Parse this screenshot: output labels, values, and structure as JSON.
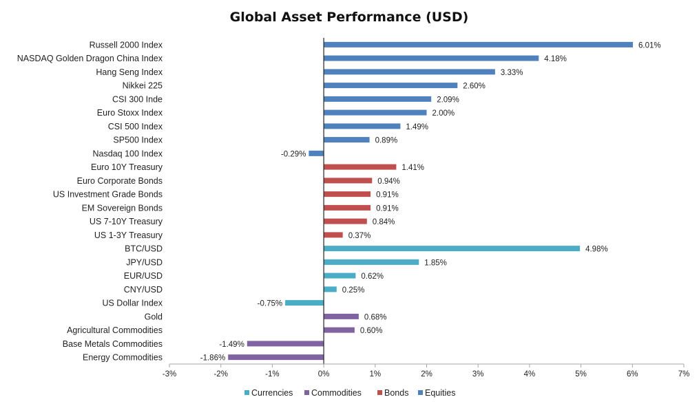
{
  "chart_data": {
    "type": "bar",
    "orientation": "horizontal",
    "title": "Global Asset Performance (USD)",
    "xlabel": "",
    "ylabel": "",
    "xlim": [
      -3,
      7
    ],
    "xticks": [
      -3,
      -2,
      -1,
      0,
      1,
      2,
      3,
      4,
      5,
      6,
      7
    ],
    "xtick_labels": [
      "-3%",
      "-2%",
      "-1%",
      "0%",
      "1%",
      "2%",
      "3%",
      "4%",
      "5%",
      "6%",
      "7%"
    ],
    "grid": false,
    "legend_position": "bottom",
    "groups": [
      {
        "name": "Currencies",
        "color": "#4BACC6"
      },
      {
        "name": "Commodities",
        "color": "#8064A2"
      },
      {
        "name": "Bonds",
        "color": "#C0504D"
      },
      {
        "name": "Equities",
        "color": "#4F81BD"
      }
    ],
    "bars": [
      {
        "label": "Russell 2000 Index",
        "value": 6.01,
        "value_label": "6.01%",
        "group": "Equities"
      },
      {
        "label": "NASDAQ Golden Dragon China Index",
        "value": 4.18,
        "value_label": "4.18%",
        "group": "Equities"
      },
      {
        "label": "Hang Seng Index",
        "value": 3.33,
        "value_label": "3.33%",
        "group": "Equities"
      },
      {
        "label": "Nikkei 225",
        "value": 2.6,
        "value_label": "2.60%",
        "group": "Equities"
      },
      {
        "label": "CSI 300 Inde",
        "value": 2.09,
        "value_label": "2.09%",
        "group": "Equities"
      },
      {
        "label": "Euro Stoxx Index",
        "value": 2.0,
        "value_label": "2.00%",
        "group": "Equities"
      },
      {
        "label": "CSI 500 Index",
        "value": 1.49,
        "value_label": "1.49%",
        "group": "Equities"
      },
      {
        "label": "SP500 Index",
        "value": 0.89,
        "value_label": "0.89%",
        "group": "Equities"
      },
      {
        "label": "Nasdaq 100 Index",
        "value": -0.29,
        "value_label": "-0.29%",
        "group": "Equities"
      },
      {
        "label": "Euro 10Y Treasury",
        "value": 1.41,
        "value_label": "1.41%",
        "group": "Bonds"
      },
      {
        "label": "Euro Corporate Bonds",
        "value": 0.94,
        "value_label": "0.94%",
        "group": "Bonds"
      },
      {
        "label": "US Investment Grade Bonds",
        "value": 0.91,
        "value_label": "0.91%",
        "group": "Bonds"
      },
      {
        "label": "EM Sovereign Bonds",
        "value": 0.91,
        "value_label": "0.91%",
        "group": "Bonds"
      },
      {
        "label": "US 7-10Y Treasury",
        "value": 0.84,
        "value_label": "0.84%",
        "group": "Bonds"
      },
      {
        "label": "US 1-3Y Treasury",
        "value": 0.37,
        "value_label": "0.37%",
        "group": "Bonds"
      },
      {
        "label": "BTC/USD",
        "value": 4.98,
        "value_label": "4.98%",
        "group": "Currencies"
      },
      {
        "label": "JPY/USD",
        "value": 1.85,
        "value_label": "1.85%",
        "group": "Currencies"
      },
      {
        "label": "EUR/USD",
        "value": 0.62,
        "value_label": "0.62%",
        "group": "Currencies"
      },
      {
        "label": "CNY/USD",
        "value": 0.25,
        "value_label": "0.25%",
        "group": "Currencies"
      },
      {
        "label": "US Dollar Index",
        "value": -0.75,
        "value_label": "-0.75%",
        "group": "Currencies"
      },
      {
        "label": "Gold",
        "value": 0.68,
        "value_label": "0.68%",
        "group": "Commodities"
      },
      {
        "label": "Agricultural Commodities",
        "value": 0.6,
        "value_label": "0.60%",
        "group": "Commodities"
      },
      {
        "label": "Base Metals Commodities",
        "value": -1.49,
        "value_label": "-1.49%",
        "group": "Commodities"
      },
      {
        "label": "Energy Commodities",
        "value": -1.86,
        "value_label": "-1.86%",
        "group": "Commodities"
      }
    ]
  }
}
